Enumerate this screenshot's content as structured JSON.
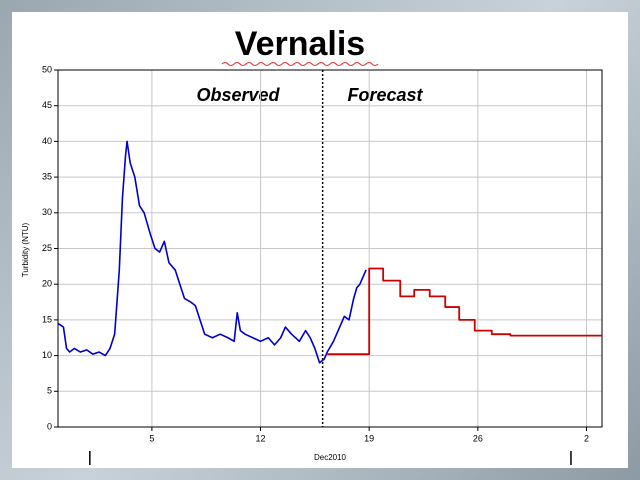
{
  "chart_data": {
    "type": "line",
    "title": "Vernalis",
    "ylabel": "Turbidity (NTU)",
    "xlabel": "Dec2010",
    "annotations": [
      "Observed",
      "Forecast"
    ],
    "divider_x": 16,
    "xlim": [
      -1.05,
      34
    ],
    "ylim": [
      0,
      50
    ],
    "xticks": [
      5,
      12,
      19,
      26,
      {
        "value": 33,
        "label": "2"
      }
    ],
    "yticks": [
      0,
      5,
      10,
      15,
      20,
      25,
      30,
      35,
      40,
      45,
      50
    ],
    "month_ticks": [
      1,
      32
    ],
    "grid": true,
    "series": [
      {
        "color": "#0000cc",
        "step": false,
        "x": [
          -1.05,
          -0.7,
          -0.5,
          -0.3,
          0,
          0.4,
          0.8,
          1.2,
          1.6,
          2,
          2.3,
          2.6,
          2.9,
          3.1,
          3.3,
          3.4,
          3.6,
          3.9,
          4.2,
          4.5,
          4.9,
          5.2,
          5.5,
          5.8,
          6.1,
          6.5,
          6.8,
          7.1,
          7.5,
          7.8,
          8.1,
          8.4,
          8.9,
          9.4,
          9.9,
          10.3,
          10.5,
          10.7,
          11,
          11.5,
          12,
          12.5,
          12.9,
          13.3,
          13.6,
          14,
          14.5,
          14.9,
          15.2,
          15.5,
          15.8,
          16.1,
          16.3,
          16.7,
          17.1,
          17.4,
          17.7,
          18,
          18.2,
          18.4,
          18.6,
          18.8
        ],
        "values": [
          14.5,
          14,
          11,
          10.5,
          11,
          10.5,
          10.8,
          10.2,
          10.5,
          10,
          11,
          13,
          22,
          32,
          38,
          40,
          37,
          35,
          31,
          30,
          27,
          25,
          24.5,
          26,
          23,
          22,
          20,
          18,
          17.5,
          17,
          15,
          13,
          12.5,
          13,
          12.5,
          12,
          16,
          13.5,
          13,
          12.5,
          12,
          12.5,
          11.5,
          12.5,
          14,
          13,
          12,
          13.5,
          12.5,
          11,
          9,
          9.5,
          10.5,
          12,
          14,
          15.5,
          15,
          18,
          19.5,
          20,
          21,
          22
        ]
      },
      {
        "color": "#cc0000",
        "step": true,
        "x": [
          16.3,
          19,
          19.9,
          21,
          21.9,
          22.9,
          23.9,
          24.8,
          25.8,
          26.9,
          28.1,
          34
        ],
        "values": [
          10.2,
          22.2,
          20.5,
          18.3,
          19.2,
          18.3,
          16.8,
          15,
          13.5,
          13,
          12.8,
          12.8
        ]
      }
    ]
  }
}
